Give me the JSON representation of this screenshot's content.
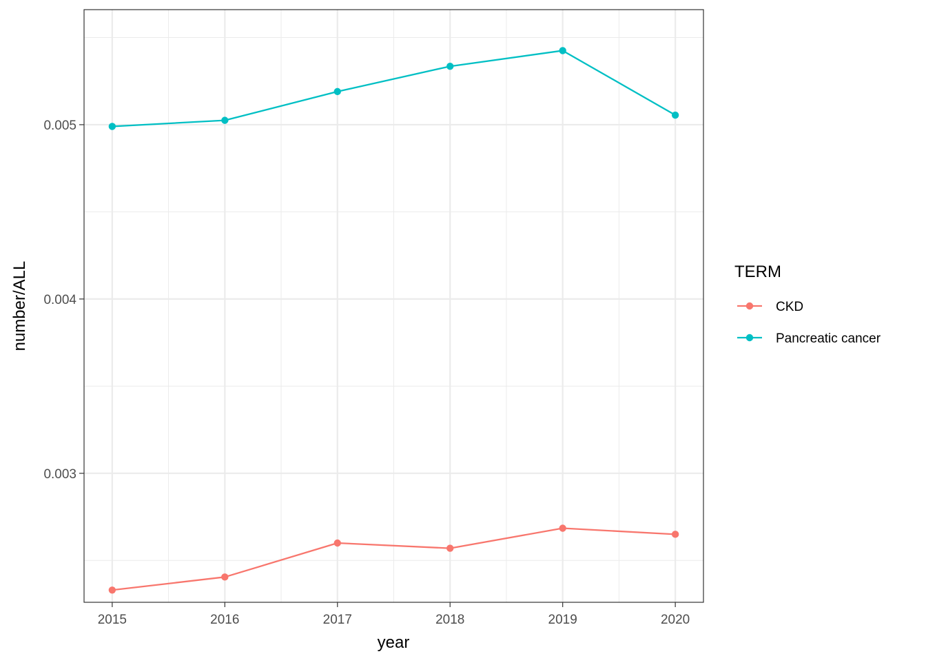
{
  "chart_data": {
    "type": "line",
    "title": "",
    "xlabel": "year",
    "ylabel": "number/ALL",
    "x": [
      2015,
      2016,
      2017,
      2018,
      2019,
      2020
    ],
    "x_tick_labels": [
      "2015",
      "2016",
      "2017",
      "2018",
      "2019",
      "2020"
    ],
    "xlim": [
      2014.75,
      2020.25
    ],
    "y_ticks": [
      0.003,
      0.004,
      0.005
    ],
    "y_tick_labels": [
      "0.003",
      "0.004",
      "0.005"
    ],
    "ylim": [
      0.00226,
      0.00566
    ],
    "grid": true,
    "legend": {
      "title": "TERM",
      "placement": "right"
    },
    "series": [
      {
        "name": "CKD",
        "color": "#F8766D",
        "values": [
          0.00233,
          0.002405,
          0.0026,
          0.00257,
          0.002685,
          0.00265
        ]
      },
      {
        "name": "Pancreatic cancer",
        "color": "#00BFC4",
        "values": [
          0.00499,
          0.005025,
          0.00519,
          0.005335,
          0.005425,
          0.005055
        ]
      }
    ]
  }
}
